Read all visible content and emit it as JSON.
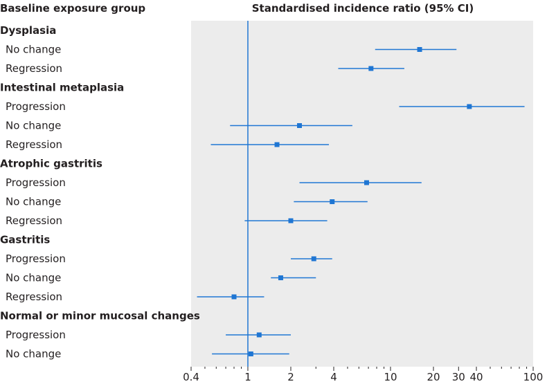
{
  "chart_data": {
    "type": "forest",
    "column_header_left": "Baseline exposure group",
    "column_header_right": "Standardised incidence ratio (95% CI)",
    "x_scale": "log",
    "xlim": [
      0.4,
      100
    ],
    "reference_line": 1,
    "ticks": [
      {
        "value": 0.4,
        "label": "0.4"
      },
      {
        "value": 1,
        "label": "1"
      },
      {
        "value": 2,
        "label": "2"
      },
      {
        "value": 4,
        "label": "4"
      },
      {
        "value": 10,
        "label": "10"
      },
      {
        "value": 20,
        "label": "20"
      },
      {
        "value": 30,
        "label": "30"
      },
      {
        "value": 40,
        "label": "40"
      },
      {
        "value": 100,
        "label": "100"
      }
    ],
    "minor_ticks": [
      0.5,
      0.6,
      0.7,
      0.8,
      0.9,
      3,
      5,
      6,
      7,
      8,
      9,
      50,
      60,
      70,
      80,
      90
    ],
    "colors": {
      "marker": "#1f76d3",
      "ci_line": "#1f76d3",
      "reference_line": "#1f76d3",
      "plot_background": "#ececec",
      "text": "#231f20"
    },
    "groups": [
      {
        "name": "Dysplasia",
        "rows": [
          {
            "label": "No change",
            "estimate": 16.0,
            "lower": 7.8,
            "upper": 29.0
          },
          {
            "label": "Regression",
            "estimate": 7.3,
            "lower": 4.3,
            "upper": 12.5
          }
        ]
      },
      {
        "name": "Intestinal metaplasia",
        "rows": [
          {
            "label": "Progression",
            "estimate": 35.7,
            "lower": 11.5,
            "upper": 87.0
          },
          {
            "label": "No change",
            "estimate": 2.3,
            "lower": 0.75,
            "upper": 5.4
          },
          {
            "label": "Regression",
            "estimate": 1.6,
            "lower": 0.55,
            "upper": 3.7
          }
        ]
      },
      {
        "name": "Atrophic gastritis",
        "rows": [
          {
            "label": "Progression",
            "estimate": 6.8,
            "lower": 2.3,
            "upper": 16.5
          },
          {
            "label": "No change",
            "estimate": 3.9,
            "lower": 2.1,
            "upper": 6.9
          },
          {
            "label": "Regression",
            "estimate": 2.0,
            "lower": 0.95,
            "upper": 3.6
          }
        ]
      },
      {
        "name": "Gastritis",
        "rows": [
          {
            "label": "Progression",
            "estimate": 2.9,
            "lower": 2.0,
            "upper": 3.9
          },
          {
            "label": "No change",
            "estimate": 1.7,
            "lower": 1.45,
            "upper": 3.0
          },
          {
            "label": "Regression",
            "estimate": 0.8,
            "lower": 0.44,
            "upper": 1.3
          }
        ]
      },
      {
        "name": "Normal or minor mucosal changes",
        "rows": [
          {
            "label": "Progression",
            "estimate": 1.2,
            "lower": 0.7,
            "upper": 2.0
          },
          {
            "label": "No change",
            "estimate": 1.05,
            "lower": 0.56,
            "upper": 1.95
          }
        ]
      }
    ]
  }
}
